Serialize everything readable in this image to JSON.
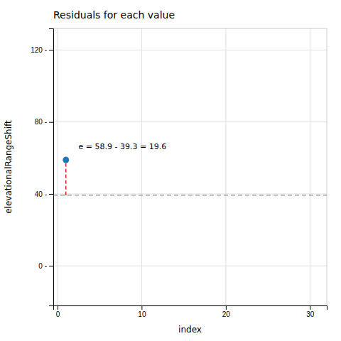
{
  "chart_data": {
    "type": "scatter",
    "title": "Residuals for each value",
    "x_label": "index",
    "y_label": "elevationalRangeShift",
    "x": [
      1
    ],
    "values": [
      58.9
    ],
    "mean_y": 39.3,
    "annotations": [
      {
        "text": "e = 58.9 - 39.3 = 19.6",
        "x": 2.5,
        "y": 65
      }
    ],
    "xlim": [
      -0.5,
      32
    ],
    "ylim": [
      -22,
      132
    ],
    "xticks": [
      0,
      10,
      20,
      30
    ],
    "yticks": [
      {
        "value": 0,
        "label": "0 -"
      },
      {
        "value": 40,
        "label": "40 -"
      },
      {
        "value": 80,
        "label": "80 -"
      },
      {
        "value": 120,
        "label": "120 -"
      }
    ],
    "grid": true
  }
}
